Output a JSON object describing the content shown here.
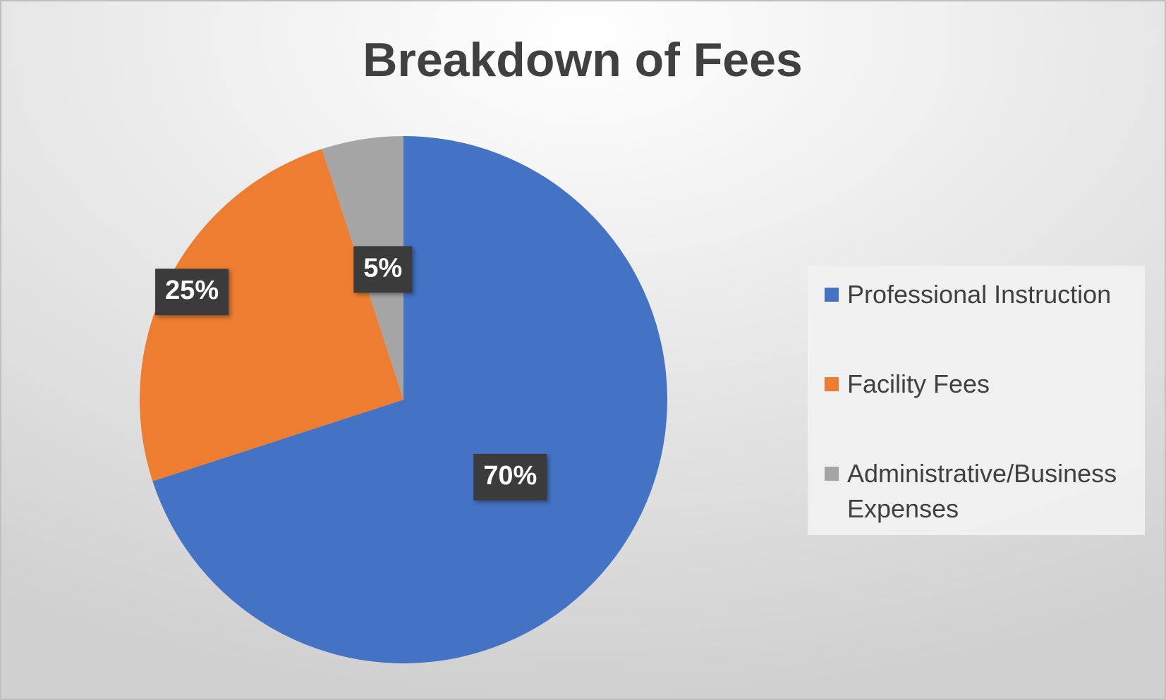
{
  "chart_data": {
    "type": "pie",
    "title": "Breakdown of Fees",
    "categories": [
      "Professional Instruction",
      "Facility Fees",
      "Administrative/Business Expenses"
    ],
    "values": [
      70,
      25,
      5
    ],
    "value_labels": [
      "70%",
      "25%",
      "5%"
    ],
    "colors": [
      "#4472c4",
      "#ed7d31",
      "#a5a5a5"
    ],
    "legend": "right"
  }
}
